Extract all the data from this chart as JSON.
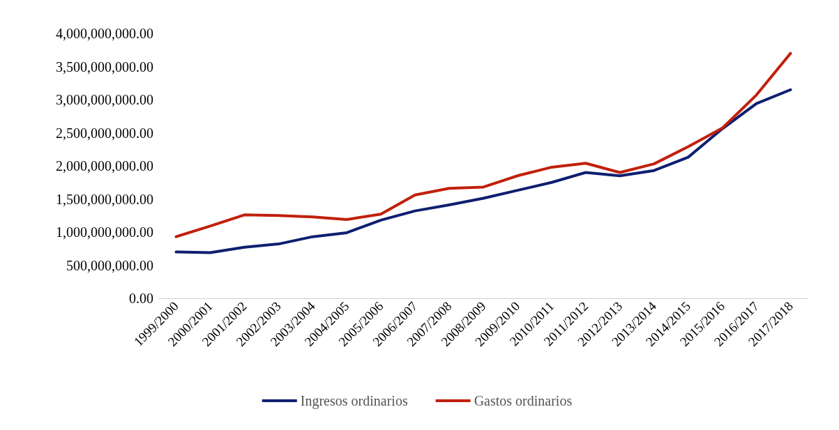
{
  "chart_data": {
    "type": "line",
    "categories": [
      "1999/2000",
      "2000/2001",
      "2001/2002",
      "2002/2003",
      "2003/2004",
      "2004/2005",
      "2005/2006",
      "2006/2007",
      "2007/2008",
      "2008/2009",
      "2009/2010",
      "2010/2011",
      "2011/2012",
      "2012/2013",
      "2013/2014",
      "2014/2015",
      "2015/2016",
      "2016/2017",
      "2017/2018"
    ],
    "series": [
      {
        "name": "Ingresos ordinarios",
        "color": "#0e1f6f",
        "values": [
          700000000,
          690000000,
          770000000,
          820000000,
          930000000,
          990000000,
          1180000000,
          1320000000,
          1410000000,
          1510000000,
          1630000000,
          1750000000,
          1900000000,
          1850000000,
          1930000000,
          2130000000,
          2560000000,
          2940000000,
          3150000000
        ]
      },
      {
        "name": "Gastos ordinarios",
        "color": "#c0200c",
        "values": [
          930000000,
          1090000000,
          1260000000,
          1250000000,
          1230000000,
          1190000000,
          1270000000,
          1560000000,
          1660000000,
          1680000000,
          1850000000,
          1980000000,
          2040000000,
          1900000000,
          2030000000,
          2290000000,
          2570000000,
          3070000000,
          3700000000
        ]
      }
    ],
    "ylim": [
      0,
      4000000000
    ],
    "yticks": [
      {
        "value": 0,
        "label": "0.00"
      },
      {
        "value": 500000000,
        "label": "500,000,000.00"
      },
      {
        "value": 1000000000,
        "label": "1,000,000,000.00"
      },
      {
        "value": 1500000000,
        "label": "1,500,000,000.00"
      },
      {
        "value": 2000000000,
        "label": "2,000,000,000.00"
      },
      {
        "value": 2500000000,
        "label": "2,500,000,000.00"
      },
      {
        "value": 3000000000,
        "label": "3,000,000,000.00"
      },
      {
        "value": 3500000000,
        "label": "3,500,000,000.00"
      },
      {
        "value": 4000000000,
        "label": "4,000,000,000.00"
      }
    ],
    "grid": false,
    "legend": "bottom",
    "marker": "none",
    "line_style": "solid"
  }
}
